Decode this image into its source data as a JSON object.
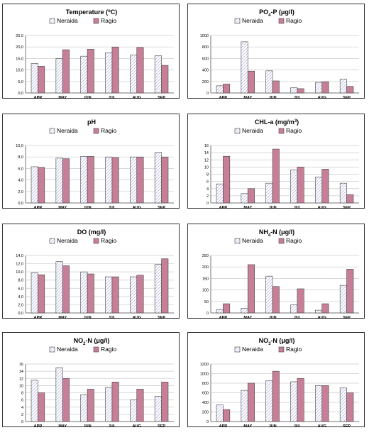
{
  "colors": {
    "series1_fill": "#ffffff",
    "series1_hatch": "#8a8fc7",
    "series2_fill": "#c77f98",
    "grid": "#cccccc",
    "bar_stroke": "#444444"
  },
  "chart_data": [
    {
      "type": "bar",
      "title_parts": [
        "Temperature (",
        "o",
        "C)"
      ],
      "legend": [
        "Neraida",
        "Ragio"
      ],
      "categories": [
        "APR",
        "MAY",
        "JUN",
        "JUL",
        "AUG",
        "SEP"
      ],
      "series": [
        {
          "name": "Neraida",
          "values": [
            12.8,
            15.0,
            16.0,
            17.5,
            16.5,
            16.2
          ]
        },
        {
          "name": "Ragio",
          "values": [
            11.6,
            18.8,
            19.0,
            20.0,
            19.8,
            12.0
          ]
        }
      ],
      "ylim": [
        0,
        25
      ],
      "yticks": [
        "0,0",
        "5,0",
        "10,0",
        "15,0",
        "20,0",
        "25,0"
      ],
      "grid": true
    },
    {
      "type": "bar",
      "title_parts": [
        "PO",
        "4",
        "-P (μg/l)"
      ],
      "legend": [
        "Neraida",
        "Ragio"
      ],
      "categories": [
        "APR",
        "MAY",
        "JUN",
        "JUL",
        "AUG",
        "SEP"
      ],
      "series": [
        {
          "name": "Neraida",
          "values": [
            125,
            890,
            385,
            90,
            185,
            240
          ]
        },
        {
          "name": "Ragio",
          "values": [
            155,
            380,
            210,
            75,
            195,
            115
          ]
        }
      ],
      "ylim": [
        0,
        1000
      ],
      "yticks": [
        "0",
        "200",
        "400",
        "600",
        "800",
        "1000"
      ],
      "grid": true
    },
    {
      "type": "bar",
      "title_parts": [
        "pH"
      ],
      "legend": [
        "Neraida",
        "Ragio"
      ],
      "categories": [
        "APR",
        "MAY",
        "JUN",
        "JUL",
        "AUG",
        "SEP"
      ],
      "series": [
        {
          "name": "Neraida",
          "values": [
            6.3,
            7.8,
            8.1,
            8.0,
            8.0,
            8.8
          ]
        },
        {
          "name": "Ragio",
          "values": [
            6.2,
            7.7,
            8.1,
            7.9,
            8.0,
            8.0
          ]
        }
      ],
      "ylim": [
        0,
        10
      ],
      "yticks": [
        "0,0",
        "2,0",
        "4,0",
        "6,0",
        "8,0",
        "10,0"
      ],
      "grid": true
    },
    {
      "type": "bar",
      "title_parts": [
        "CHL-a (mg/m",
        "3",
        ")"
      ],
      "legend": [
        "Neraida",
        "Ragio"
      ],
      "categories": [
        "APR",
        "MAY",
        "JUN",
        "JUL",
        "AUG",
        "SEP"
      ],
      "series": [
        {
          "name": "Neraida",
          "values": [
            5.3,
            2.6,
            5.5,
            9.2,
            7.2,
            5.5
          ]
        },
        {
          "name": "Ragio",
          "values": [
            13.0,
            4.0,
            15.0,
            10.0,
            9.4,
            2.3
          ]
        }
      ],
      "ylim": [
        0,
        16
      ],
      "yticks": [
        "0",
        "2",
        "4",
        "6",
        "8",
        "10",
        "12",
        "14",
        "16"
      ],
      "grid": true
    },
    {
      "type": "bar",
      "title_parts": [
        "DO (mg/l)"
      ],
      "legend": [
        "Neraida",
        "Ragio"
      ],
      "categories": [
        "APR",
        "MAY",
        "JUN",
        "JUL",
        "AUG",
        "SEP"
      ],
      "series": [
        {
          "name": "Neraida",
          "values": [
            9.8,
            12.5,
            10.0,
            8.8,
            8.8,
            11.8
          ]
        },
        {
          "name": "Ragio",
          "values": [
            9.3,
            11.5,
            9.5,
            8.8,
            9.2,
            13.2
          ]
        }
      ],
      "ylim": [
        0,
        14
      ],
      "yticks": [
        "0,0",
        "2,0",
        "4,0",
        "6,0",
        "8,0",
        "10,0",
        "12,0",
        "14,0"
      ],
      "grid": true
    },
    {
      "type": "bar",
      "title_parts": [
        "NH",
        "4",
        "-N (μg/l)"
      ],
      "legend": [
        "Neraida",
        "Ragio"
      ],
      "categories": [
        "APR",
        "MAY",
        "JUN",
        "JUL",
        "AUG",
        "SEP"
      ],
      "series": [
        {
          "name": "Neraida",
          "values": [
            15,
            20,
            160,
            35,
            12,
            120
          ]
        },
        {
          "name": "Ragio",
          "values": [
            40,
            210,
            115,
            105,
            40,
            190
          ]
        }
      ],
      "ylim": [
        0,
        250
      ],
      "yticks": [
        "0",
        "50",
        "100",
        "150",
        "200",
        "250"
      ],
      "grid": true
    },
    {
      "type": "bar",
      "title_parts": [
        "NO",
        "2",
        "-N (μg/l)"
      ],
      "legend": [
        "Neraida",
        "Ragio"
      ],
      "categories": [
        "APR",
        "MAY",
        "JUN",
        "JUL",
        "AUG",
        "SEP"
      ],
      "series": [
        {
          "name": "Neraida",
          "values": [
            11.5,
            15.0,
            7.5,
            9.5,
            6.0,
            7.0
          ]
        },
        {
          "name": "Ragio",
          "values": [
            8.0,
            12.0,
            9.0,
            11.0,
            9.0,
            11.0
          ]
        }
      ],
      "ylim": [
        0,
        16
      ],
      "yticks": [
        "0",
        "2",
        "4",
        "6",
        "8",
        "10",
        "12",
        "14",
        "16"
      ],
      "grid": true
    },
    {
      "type": "bar",
      "title_parts": [
        "NO",
        "3",
        "-N (μg/l)"
      ],
      "legend": [
        "Neraida",
        "Ragio"
      ],
      "categories": [
        "APR",
        "MAY",
        "JUN",
        "JUL",
        "AUG",
        "SEP"
      ],
      "series": [
        {
          "name": "Neraida",
          "values": [
            350,
            650,
            850,
            830,
            750,
            700
          ]
        },
        {
          "name": "Ragio",
          "values": [
            250,
            800,
            1050,
            900,
            750,
            600
          ]
        }
      ],
      "ylim": [
        0,
        1200
      ],
      "yticks": [
        "0",
        "200",
        "400",
        "600",
        "800",
        "1000",
        "1200"
      ],
      "grid": true
    }
  ]
}
